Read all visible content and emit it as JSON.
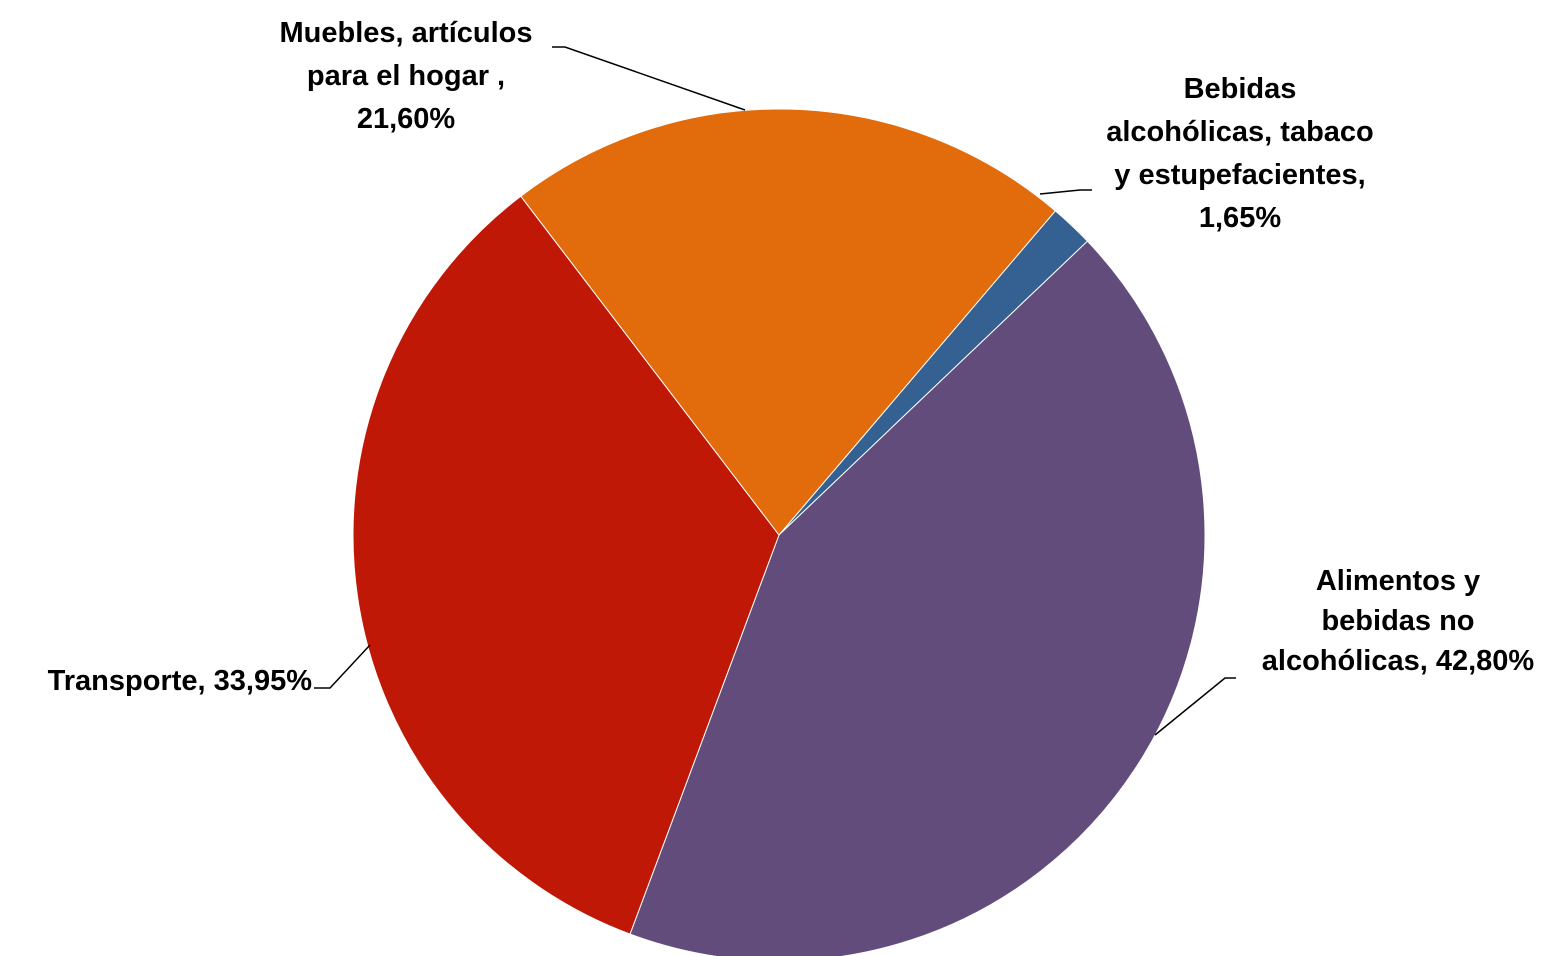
{
  "chart_data": {
    "type": "pie",
    "title": "",
    "slices": [
      {
        "name": "Alimentos y bebidas no alcohólicas",
        "value": 42.8,
        "label_lines": [
          "Alimentos y",
          "bebidas no",
          "alcohólicas, 42,80%"
        ],
        "color": "#614C7C"
      },
      {
        "name": "Transporte",
        "value": 33.95,
        "label_lines": [
          "Transporte, 33,95%"
        ],
        "color": "#C01806"
      },
      {
        "name": "Muebles, artículos para el hogar",
        "value": 21.6,
        "label_lines": [
          "Muebles, artículos",
          "para el hogar ,",
          "21,60%"
        ],
        "color": "#E26C0C"
      },
      {
        "name": "Bebidas alcohólicas, tabaco y estupefacientes",
        "value": 1.65,
        "label_lines": [
          "Bebidas",
          "alcohólicas, tabaco",
          "y estupefacientes,",
          "1,65%"
        ],
        "color": "#346092"
      }
    ],
    "legend": "none",
    "start_slice": "Bebidas alcohólicas, tabaco y estupefacientes",
    "direction": "clockwise"
  }
}
